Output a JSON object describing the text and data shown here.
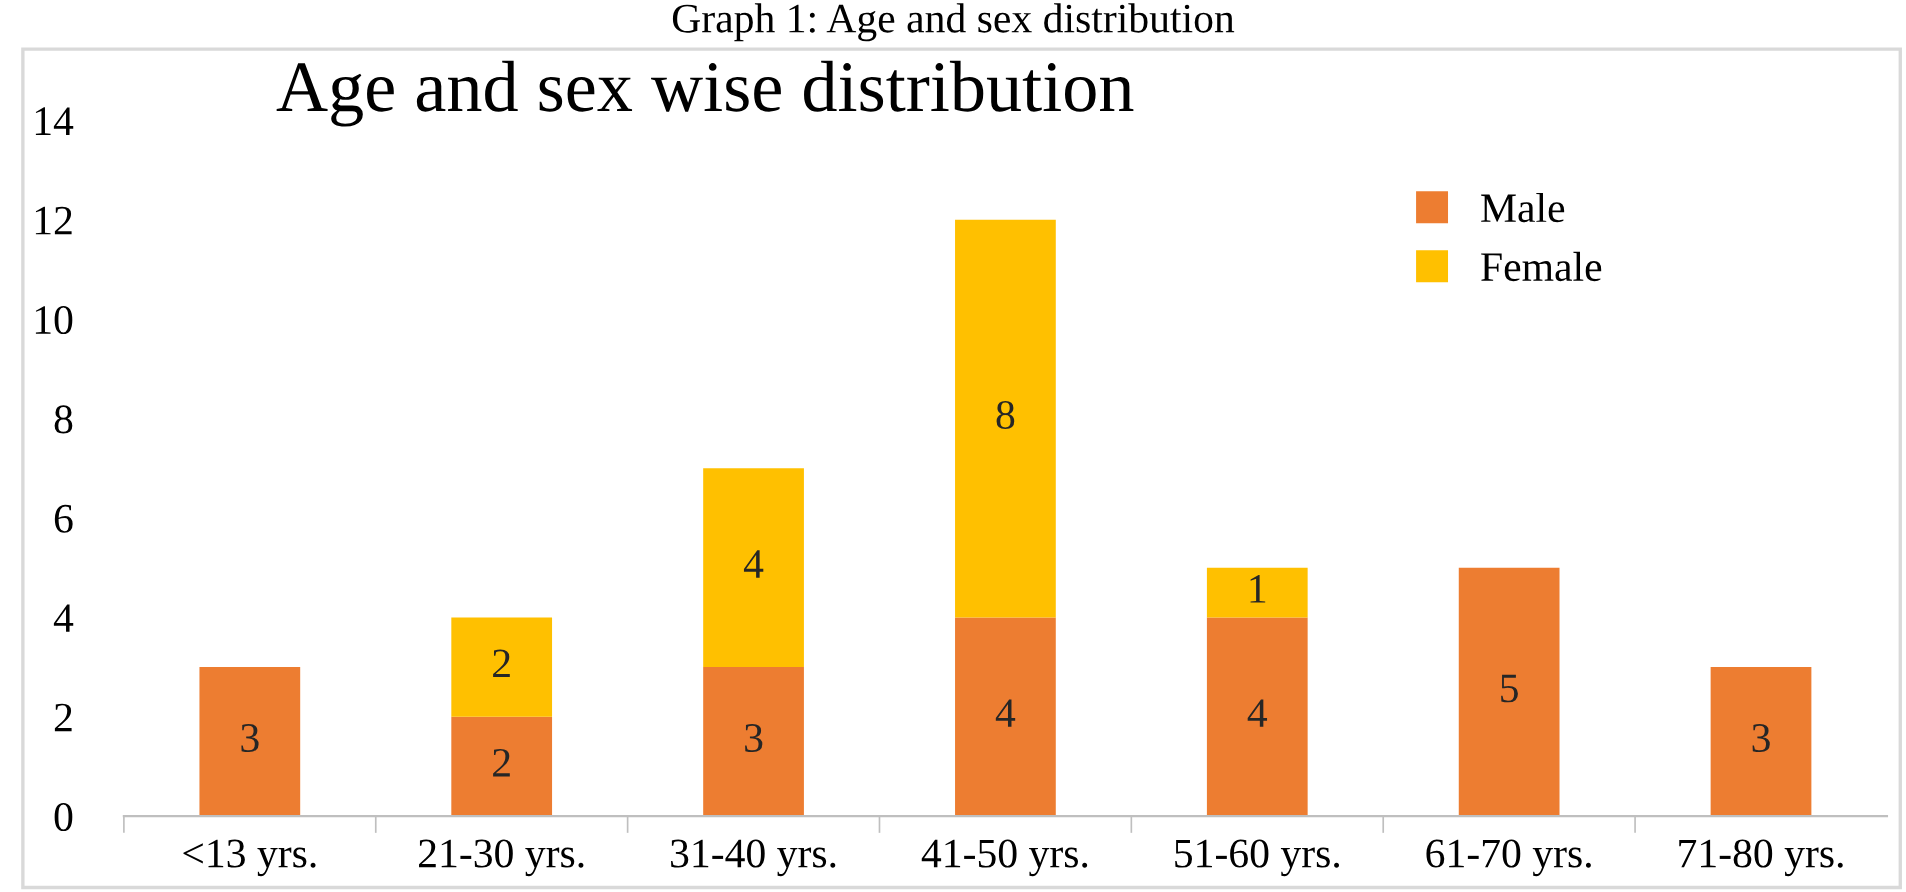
{
  "chart_data": {
    "type": "bar",
    "title": "Age and sex wise distribution",
    "annotations": [
      "Graph 1: Age and sex distribution"
    ],
    "categories": [
      "<13 yrs.",
      "21-30 yrs.",
      "31-40 yrs.",
      "41-50 yrs.",
      "51-60 yrs.",
      "61-70 yrs.",
      "71-80 yrs."
    ],
    "series": [
      {
        "name": "Male",
        "color": "#ed7d31",
        "values": [
          3,
          2,
          3,
          4,
          4,
          5,
          3
        ]
      },
      {
        "name": "Female",
        "color": "#ffc000",
        "values": [
          null,
          2,
          4,
          8,
          1,
          null,
          null
        ]
      }
    ],
    "stacked": true,
    "data_labels": true,
    "ylim": [
      0,
      14
    ],
    "yticks": [
      0,
      2,
      4,
      6,
      8,
      10,
      12,
      14
    ],
    "grid": false,
    "legend": "top right"
  }
}
